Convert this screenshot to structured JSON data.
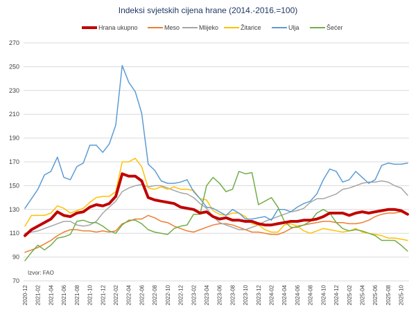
{
  "chart_data": {
    "type": "line",
    "title": "Indeksi svjetskih cijena hrane (2014.-2016.=100)",
    "source": "Izvor: FAO",
    "ylim": [
      70,
      270
    ],
    "yticks": [
      70,
      90,
      110,
      130,
      150,
      170,
      190,
      210,
      230,
      250,
      270
    ],
    "start_month": "2020-12",
    "end_month": "2025-10",
    "x_tick_labels": [
      "2020-12",
      "2021-02",
      "2021-04",
      "2021-06",
      "2021-08",
      "2021-10",
      "2021-12",
      "2022-02",
      "2022-04",
      "2022-06",
      "2022-08",
      "2022-10",
      "2022-12",
      "2023-02",
      "2023-04",
      "2023-06",
      "2023-08",
      "2023-10",
      "2023-12",
      "2024-02",
      "2024-04",
      "2024-06",
      "2024-08",
      "2024-10",
      "2024-12",
      "2025-02",
      "2025-04",
      "2025-06",
      "2025-08",
      "2025-10"
    ],
    "series": [
      {
        "name": "Hrana ukupno",
        "color": "#c00000",
        "width": 4,
        "values": [
          108,
          113,
          116,
          119,
          122,
          128,
          125,
          124,
          127,
          128,
          132,
          134,
          133,
          135,
          141,
          160,
          158,
          158,
          154,
          140,
          138,
          137,
          136,
          135,
          132,
          131,
          130,
          127,
          128,
          124,
          122,
          123,
          121,
          121,
          120,
          120,
          118,
          117,
          117,
          118,
          119,
          120,
          120,
          121,
          121,
          122,
          124,
          127,
          127,
          127,
          125,
          127,
          128,
          127,
          128,
          129,
          130,
          130,
          129,
          126
        ]
      },
      {
        "name": "Meso",
        "color": "#ed7d31",
        "width": 1.5,
        "values": [
          94,
          96,
          98,
          101,
          104,
          108,
          111,
          113,
          113,
          112,
          112,
          111,
          112,
          111,
          112,
          118,
          120,
          122,
          122,
          125,
          123,
          120,
          119,
          116,
          114,
          112,
          111,
          113,
          115,
          117,
          118,
          118,
          117,
          115,
          113,
          111,
          111,
          110,
          109,
          109,
          111,
          114,
          116,
          117,
          118,
          119,
          120,
          120,
          119,
          119,
          118,
          118,
          119,
          121,
          124,
          126,
          127,
          127,
          128,
          126
        ]
      },
      {
        "name": "Mlijeko",
        "color": "#a5a5a5",
        "width": 1.5,
        "values": [
          110,
          111,
          112,
          114,
          116,
          118,
          120,
          120,
          117,
          116,
          117,
          120,
          127,
          132,
          137,
          145,
          148,
          150,
          151,
          149,
          150,
          150,
          148,
          146,
          144,
          143,
          140,
          135,
          131,
          124,
          119,
          117,
          115,
          113,
          113,
          115,
          117,
          120,
          122,
          124,
          126,
          128,
          129,
          131,
          136,
          139,
          139,
          141,
          143,
          147,
          148,
          150,
          152,
          153,
          153,
          154,
          153,
          150,
          148,
          142
        ]
      },
      {
        "name": "Žitarice",
        "color": "#ffc000",
        "width": 1.5,
        "values": [
          116,
          125,
          125,
          125,
          127,
          133,
          131,
          127,
          129,
          131,
          136,
          140,
          141,
          141,
          145,
          170,
          170,
          173,
          166,
          148,
          147,
          149,
          147,
          149,
          147,
          147,
          146,
          139,
          138,
          129,
          126,
          125,
          127,
          127,
          124,
          118,
          117,
          113,
          111,
          111,
          117,
          118,
          116,
          112,
          110,
          112,
          114,
          113,
          112,
          111,
          112,
          114,
          111,
          110,
          109,
          108,
          106,
          106,
          105,
          104
        ]
      },
      {
        "name": "Ulja",
        "color": "#5b9bd5",
        "width": 1.5,
        "values": [
          131,
          139,
          147,
          159,
          162,
          174,
          157,
          155,
          166,
          169,
          184,
          184,
          178,
          185,
          201,
          251,
          237,
          229,
          211,
          168,
          163,
          154,
          152,
          152,
          153,
          155,
          145,
          139,
          132,
          131,
          128,
          125,
          130,
          127,
          122,
          122,
          123,
          124,
          121,
          130,
          130,
          128,
          132,
          135,
          137,
          143,
          155,
          164,
          162,
          153,
          155,
          162,
          157,
          152,
          155,
          167,
          169,
          168,
          168,
          169
        ]
      },
      {
        "name": "Šećer",
        "color": "#70ad47",
        "width": 1.5,
        "values": [
          87,
          94,
          100,
          96,
          100,
          106,
          107,
          109,
          120,
          121,
          119,
          119,
          116,
          112,
          110,
          117,
          121,
          121,
          118,
          113,
          111,
          110,
          109,
          114,
          116,
          117,
          126,
          126,
          150,
          157,
          152,
          145,
          147,
          162,
          160,
          161,
          134,
          137,
          140,
          132,
          120,
          115,
          115,
          117,
          120,
          127,
          130,
          127,
          119,
          114,
          112,
          113,
          112,
          110,
          108,
          104,
          104,
          104,
          100,
          95
        ]
      }
    ]
  }
}
